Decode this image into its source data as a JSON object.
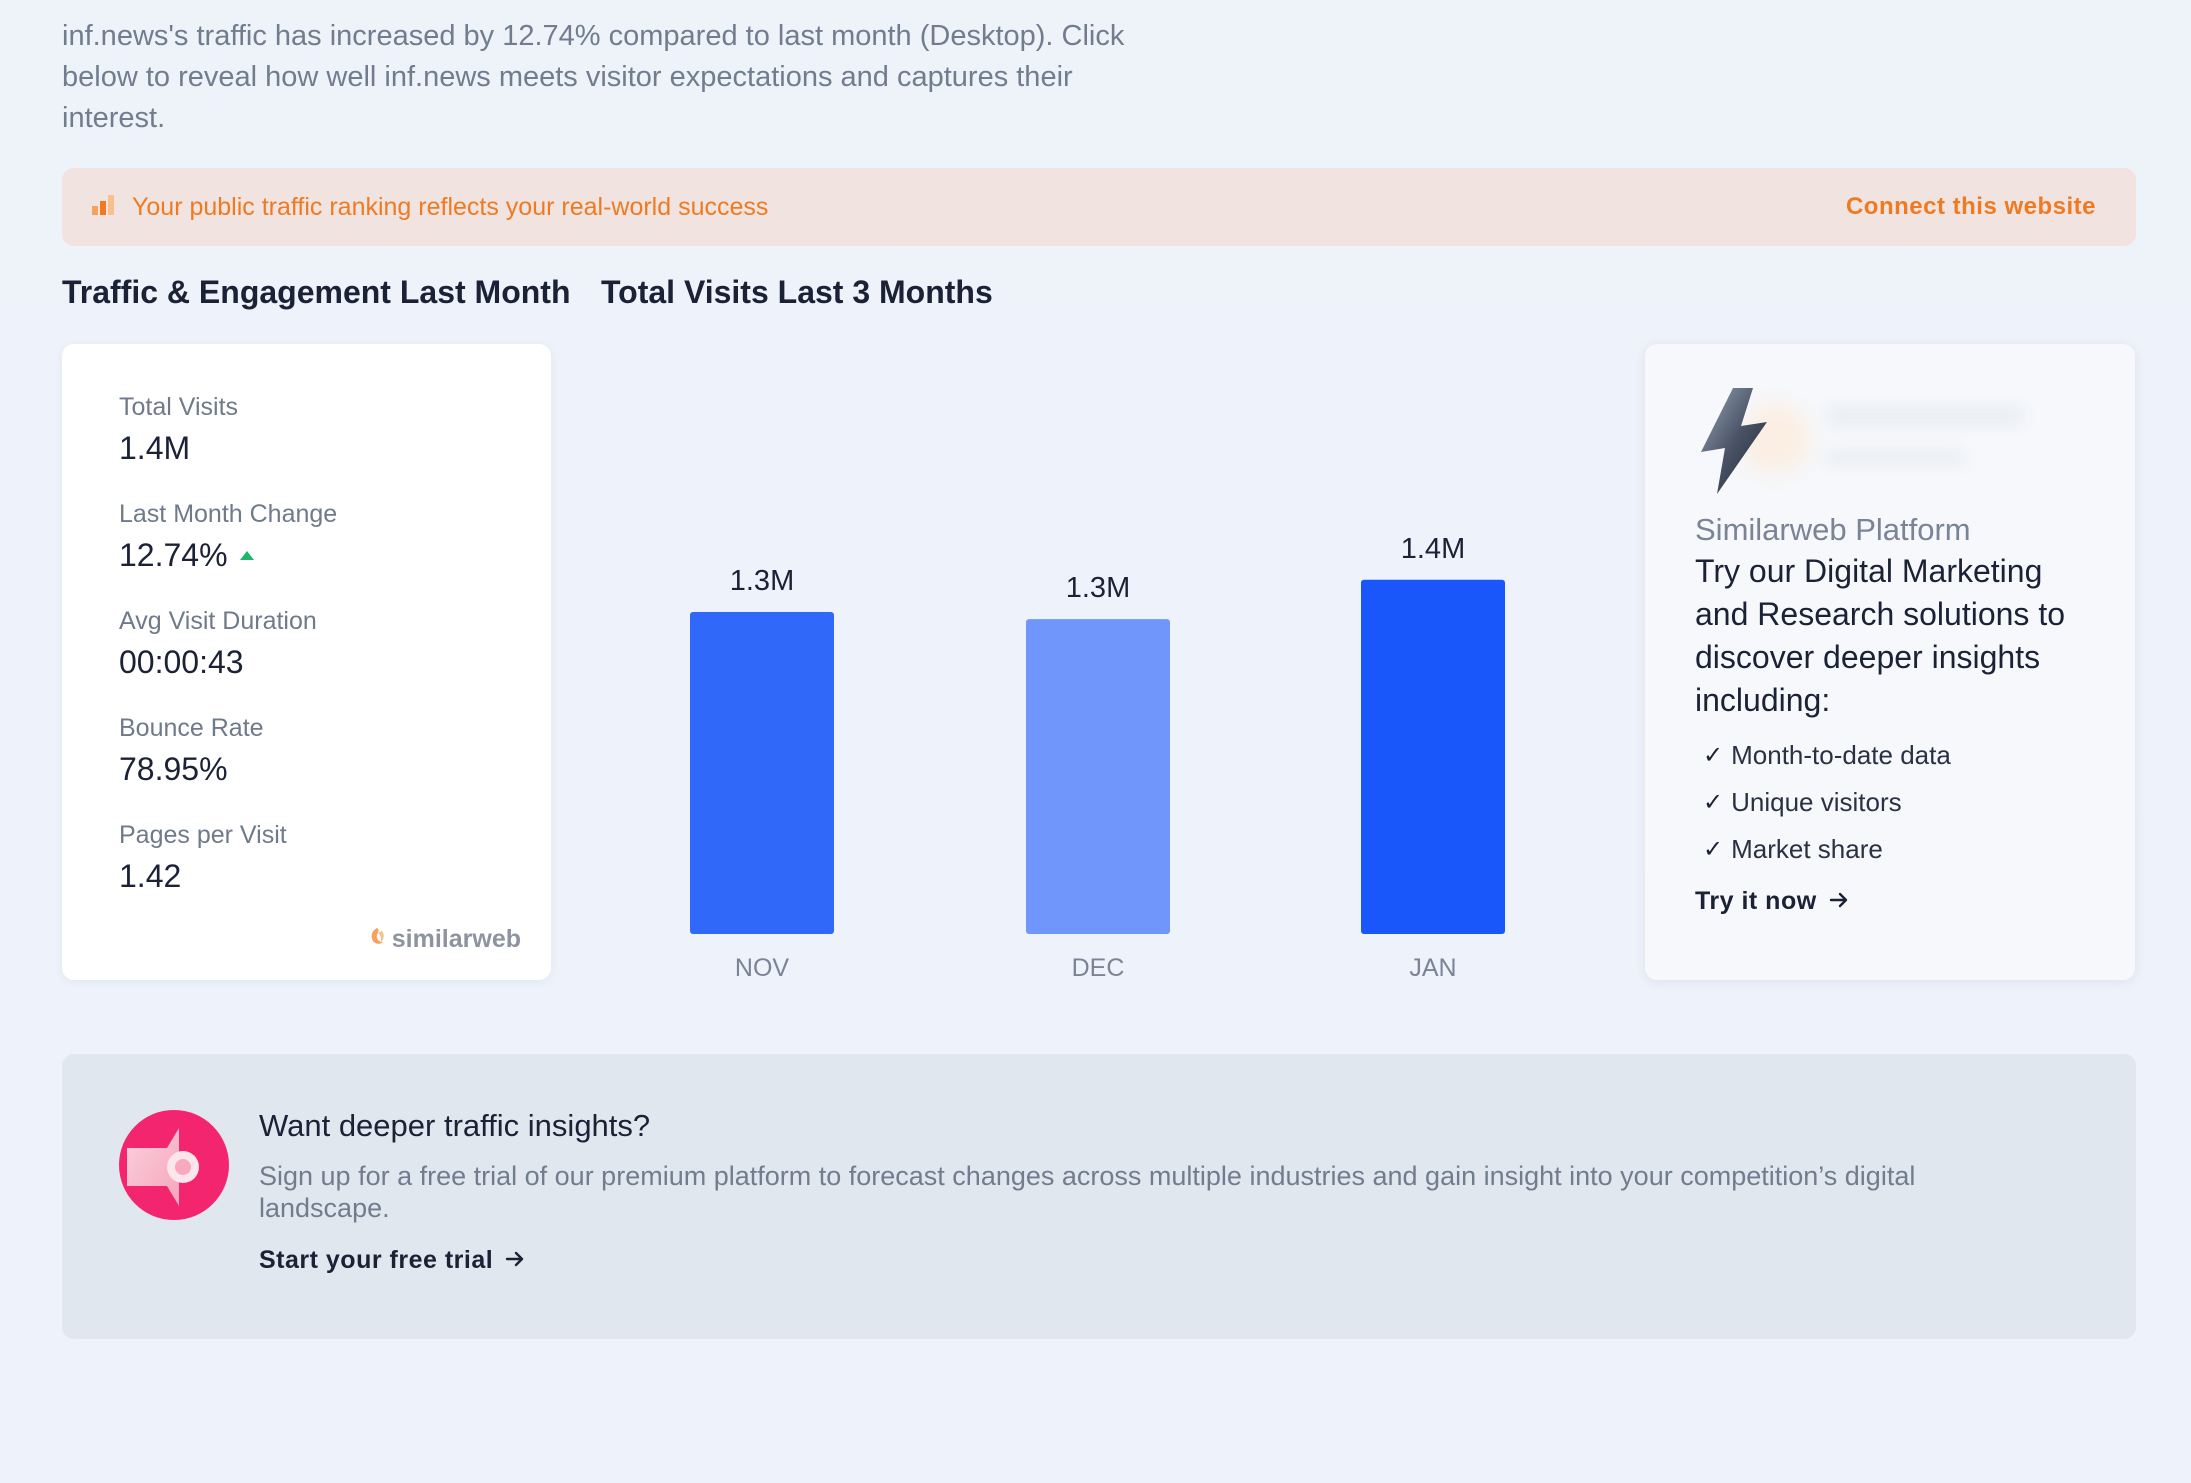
{
  "intro": {
    "text": "inf.news's traffic has increased by 12.74% compared to last month (Desktop). Click below to reveal how well inf.news meets visitor expectations and captures their interest."
  },
  "banner": {
    "message": "Your public traffic ranking reflects your real-world success",
    "cta": "Connect this website",
    "icon": "bar-chart-icon",
    "color": "#f07a22"
  },
  "sections": {
    "engagement_title": "Traffic & Engagement Last Month",
    "visits_title": "Total Visits Last 3 Months"
  },
  "metrics": [
    {
      "label": "Total Visits",
      "value": "1.4M"
    },
    {
      "label": "Last Month Change",
      "value": "12.74%",
      "trend": "up"
    },
    {
      "label": "Avg Visit Duration",
      "value": "00:00:43"
    },
    {
      "label": "Bounce Rate",
      "value": "78.95%"
    },
    {
      "label": "Pages per Visit",
      "value": "1.42"
    }
  ],
  "brand": {
    "logo_text": "similarweb"
  },
  "chart_data": {
    "type": "bar",
    "categories": [
      "NOV",
      "DEC",
      "JAN"
    ],
    "values": [
      1.3,
      1.3,
      1.4
    ],
    "value_labels": [
      "1.3M",
      "1.3M",
      "1.4M"
    ],
    "bar_heights_relative": [
      1.0,
      0.978,
      1.1
    ],
    "colors": [
      "#3068fa",
      "#7096fb",
      "#1957fb"
    ],
    "title": "",
    "xlabel": "",
    "ylabel": ""
  },
  "promo": {
    "eyebrow": "Similarweb Platform",
    "title": "Try our Digital Marketing and Research solutions to discover deeper insights including:",
    "items": [
      "Month-to-date data",
      "Unique visitors",
      "Market share"
    ],
    "cta": "Try it now"
  },
  "insight": {
    "title": "Want deeper traffic insights?",
    "text": "Sign up for a free trial of our premium platform to forecast changes across multiple industries and gain insight into your competition’s digital landscape.",
    "cta": "Start your free trial",
    "icon": "megaphone-icon"
  }
}
